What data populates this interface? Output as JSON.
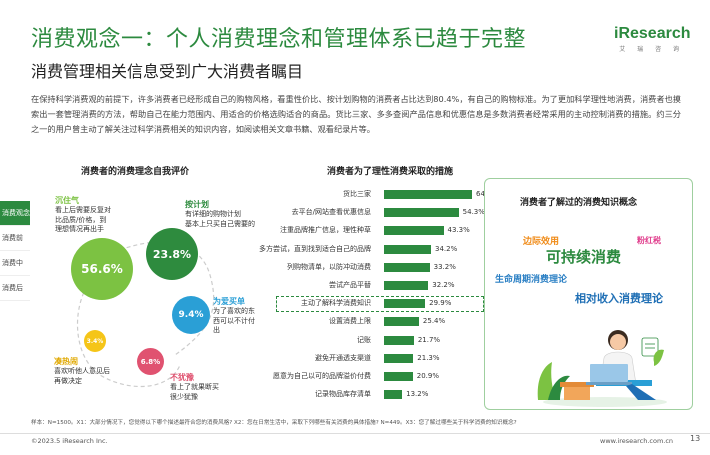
{
  "header": {
    "title": "消费观念一：个人消费理念和管理体系已趋于完整",
    "subtitle": "消费管理相关信息受到广大消费者瞩目",
    "logo_main": "iResearch",
    "logo_sub": "艾 瑞 咨 询"
  },
  "intro": "在保持科学消费观的前提下，许多消费者已经形成自己的购物风格，看重性价比、按计划购物的消费者占比达到80.4%，有自己的购物标准。为了更加科学理性地消费，消费者也摸索出一套管理消费的方法，帮助自己在能力范围内、用适合的价格选购适合的商品。货比三家、多多查阅产品信息和优惠信息是多数消费者经常采用的主动控制消费的措施。约三分之一的用户曾主动了解关注过科学消费相关的知识内容，如阅读相关文章书籍、观看纪录片等。",
  "sidenav": [
    {
      "label": "消费观念",
      "active": true
    },
    {
      "label": "消费前",
      "active": false
    },
    {
      "label": "消费中",
      "active": false
    },
    {
      "label": "消费后",
      "active": false
    }
  ],
  "left_section": {
    "title": "消费者的消费理念自我评价",
    "bubbles": [
      {
        "value": "56.6%",
        "name": "沉住气",
        "desc": [
          "看上后需要反复对",
          "比品质/价格，到",
          "理想情况再出手"
        ],
        "color": "#7cc242"
      },
      {
        "value": "23.8%",
        "name": "按计划",
        "desc": [
          "有详细的购物计划",
          "基本上只买自己需要的"
        ],
        "color": "#2e8b3e"
      },
      {
        "value": "9.4%",
        "name": "为爱买单",
        "desc": [
          "为了喜欢的东",
          "西可以不计付",
          "出"
        ],
        "color": "#2a9fd6"
      },
      {
        "value": "6.8%",
        "name": "不犹豫",
        "desc": [
          "看上了就果断买",
          "很少犹豫"
        ],
        "color": "#e05270"
      },
      {
        "value": "3.4%",
        "name": "凑热闹",
        "desc": [
          "喜欢听他人意见后",
          "再做决定"
        ],
        "color": "#f5c518"
      }
    ]
  },
  "chart_data": {
    "type": "bar",
    "title": "消费者为了理性消费采取的措施",
    "categories": [
      "货比三家",
      "去平台/网站查看优惠信息",
      "注重品牌推广信息，理性种草",
      "多方尝试，直到找到适合自己的品牌",
      "列购物清单，以防冲动消费",
      "尝试产品平替",
      "主动了解科学消费知识",
      "设置消费上限",
      "记账",
      "避免开通透支渠道",
      "愿意为自己以可的品牌溢价付费",
      "记录物品库存清单"
    ],
    "values": [
      64.0,
      54.3,
      43.3,
      34.2,
      33.2,
      32.2,
      29.9,
      25.4,
      21.7,
      21.3,
      20.9,
      13.2
    ],
    "value_labels": [
      "64.0%",
      "54.3%",
      "43.3%",
      "34.2%",
      "33.2%",
      "32.2%",
      "29.9%",
      "25.4%",
      "21.7%",
      "21.3%",
      "20.9%",
      "13.2%"
    ],
    "highlight_index": 6,
    "bar_color": "#2c8a3f"
  },
  "word_cloud": {
    "title": "消费者了解过的消费知识概念",
    "words": [
      {
        "text": "边际效用",
        "color": "#f08c1a"
      },
      {
        "text": "粉红税",
        "color": "#e03d8c"
      },
      {
        "text": "可持续消费",
        "color": "#2c8a3f"
      },
      {
        "text": "生命周期消费理论",
        "color": "#2a7fc4"
      },
      {
        "text": "相对收入消费理论",
        "color": "#1f6fb5"
      }
    ]
  },
  "footer": {
    "footnote": "样本：N=1500。X1：大部分情况下，您觉得以下哪个描述最符合您的消费风格? X2：您在日常生活中，采取下列哪些有关消费的具体措施? N=449。X3：您了解过哪些关于科学消费的知识概念?",
    "copyright": "©2023.5 iResearch Inc.",
    "website": "www.iresearch.com.cn",
    "page": "13"
  }
}
